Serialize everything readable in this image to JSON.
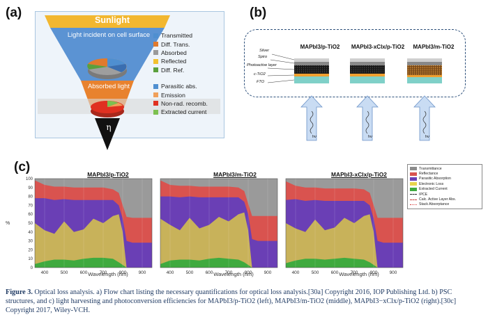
{
  "panel_a": {
    "label": "(a)",
    "title": "Sunlight",
    "incident_label": "Light incident on cell surface",
    "absorbed_label": "Absorbed light",
    "eta": "η",
    "legend1": [
      {
        "label": "Transmitted",
        "color": "#4f8fd0"
      },
      {
        "label": "Diff. Trans.",
        "color": "#e07a2e"
      },
      {
        "label": "Absorbed",
        "color": "#9a9a9a"
      },
      {
        "label": "Reflected",
        "color": "#f2c12e"
      },
      {
        "label": "Diff. Ref.",
        "color": "#5aa03c"
      }
    ],
    "legend2": [
      {
        "label": "Parasitic abs.",
        "color": "#4f8fd0"
      },
      {
        "label": "Emission",
        "color": "#f0a05a"
      },
      {
        "label": "Non-rad. recomb.",
        "color": "#e03020"
      },
      {
        "label": "Extracted current",
        "color": "#7cc050"
      }
    ]
  },
  "panel_b": {
    "label": "(b)",
    "structures": [
      "MAPbI3/p-TiO2",
      "MAPbI3-xClx/p-TiO2",
      "MAPbI3/m-TiO2"
    ],
    "layers": [
      "Silver",
      "Spiro",
      "Photoactive layer",
      "c-TiO2",
      "FTO"
    ],
    "light": "hν"
  },
  "panel_c": {
    "label": "(c)",
    "titles": [
      "MAPbI3/p-TiO2",
      "MAPbI3/m-TiO2",
      "MAPbI3-xClx/p-TiO2"
    ],
    "xlabel": "Wavelength (nm)",
    "ylabel": "%",
    "legend": [
      {
        "label": "Transmittance",
        "color": "#8c8c8c"
      },
      {
        "label": "Reflectance",
        "color": "#d9534f"
      },
      {
        "label": "Parasitic Absorption",
        "color": "#6a3fb5"
      },
      {
        "label": "Electronic Loss",
        "color": "#e8d44d"
      },
      {
        "label": "Extracted Current",
        "color": "#3faa3f"
      },
      {
        "label": "IPCE",
        "color": "#222222"
      },
      {
        "label": "Calc. Active Layer Abs.",
        "color": "#c83c3c"
      },
      {
        "label": "Stack Absorptance",
        "color": "#d84040"
      }
    ]
  },
  "chart_data": [
    {
      "type": "area",
      "title": "MAPbI3/p-TiO2",
      "xlabel": "Wavelength (nm)",
      "ylabel": "%",
      "xlim": [
        350,
        950
      ],
      "ylim": [
        0,
        100
      ],
      "x": [
        350,
        400,
        450,
        500,
        550,
        600,
        650,
        700,
        750,
        780,
        800,
        820,
        850,
        900,
        950
      ],
      "series": [
        {
          "name": "Extracted Current",
          "values": [
            4,
            7,
            9,
            9,
            8,
            10,
            11,
            11,
            10,
            6,
            3,
            0,
            0,
            0,
            0
          ]
        },
        {
          "name": "Electronic Loss",
          "values": [
            50,
            42,
            38,
            52,
            40,
            43,
            55,
            50,
            58,
            60,
            40,
            0,
            0,
            0,
            0
          ]
        },
        {
          "name": "Parasitic Absorption",
          "values": [
            78,
            78,
            76,
            77,
            76,
            76,
            76,
            76,
            76,
            70,
            55,
            30,
            28,
            28,
            28
          ]
        },
        {
          "name": "Reflectance",
          "values": [
            98,
            93,
            91,
            91,
            90,
            90,
            90,
            90,
            88,
            84,
            70,
            57,
            56,
            56,
            56
          ]
        },
        {
          "name": "Transmittance",
          "values": [
            100,
            100,
            100,
            100,
            100,
            100,
            100,
            100,
            100,
            100,
            100,
            100,
            100,
            100,
            100
          ]
        }
      ]
    },
    {
      "type": "area",
      "title": "MAPbI3/m-TiO2",
      "xlabel": "Wavelength (nm)",
      "ylabel": "%",
      "xlim": [
        350,
        950
      ],
      "ylim": [
        0,
        100
      ],
      "x": [
        350,
        400,
        450,
        500,
        550,
        600,
        650,
        700,
        750,
        780,
        800,
        820,
        850,
        900,
        950
      ],
      "series": [
        {
          "name": "Extracted Current",
          "values": [
            4,
            8,
            9,
            9,
            8,
            10,
            11,
            10,
            9,
            6,
            3,
            0,
            0,
            0,
            0
          ]
        },
        {
          "name": "Electronic Loss",
          "values": [
            55,
            48,
            42,
            56,
            44,
            48,
            57,
            52,
            60,
            62,
            42,
            0,
            0,
            0,
            0
          ]
        },
        {
          "name": "Parasitic Absorption",
          "values": [
            80,
            80,
            79,
            80,
            79,
            79,
            79,
            79,
            79,
            74,
            60,
            32,
            30,
            30,
            30
          ]
        },
        {
          "name": "Reflectance",
          "values": [
            98,
            93,
            92,
            92,
            91,
            91,
            91,
            91,
            90,
            86,
            72,
            58,
            58,
            58,
            58
          ]
        },
        {
          "name": "Transmittance",
          "values": [
            100,
            100,
            100,
            100,
            100,
            100,
            100,
            100,
            100,
            100,
            100,
            100,
            100,
            100,
            100
          ]
        }
      ]
    },
    {
      "type": "area",
      "title": "MAPbI3-xClx/p-TiO2",
      "xlabel": "Wavelength (nm)",
      "ylabel": "%",
      "xlim": [
        350,
        950
      ],
      "ylim": [
        0,
        100
      ],
      "x": [
        350,
        400,
        450,
        500,
        550,
        600,
        650,
        700,
        750,
        780,
        800,
        820,
        850,
        900,
        950
      ],
      "series": [
        {
          "name": "Extracted Current",
          "values": [
            5,
            8,
            10,
            10,
            9,
            10,
            11,
            10,
            9,
            6,
            3,
            0,
            0,
            0,
            0
          ]
        },
        {
          "name": "Electronic Loss",
          "values": [
            50,
            44,
            40,
            54,
            42,
            45,
            56,
            50,
            58,
            60,
            40,
            0,
            0,
            0,
            0
          ]
        },
        {
          "name": "Parasitic Absorption",
          "values": [
            76,
            77,
            75,
            76,
            75,
            75,
            75,
            75,
            75,
            70,
            55,
            30,
            28,
            28,
            28
          ]
        },
        {
          "name": "Reflectance",
          "values": [
            97,
            92,
            90,
            90,
            89,
            89,
            89,
            89,
            88,
            84,
            70,
            56,
            56,
            56,
            56
          ]
        },
        {
          "name": "Transmittance",
          "values": [
            100,
            100,
            100,
            100,
            100,
            100,
            100,
            100,
            100,
            100,
            100,
            100,
            100,
            100,
            100
          ]
        }
      ]
    }
  ],
  "caption": {
    "lead": "Figure 3.",
    "text": "Optical loss analysis. a) Flow chart listing the necessary quantifications for optical loss analysis.[30a] Copyright 2016, IOP Publishing Ltd. b) PSC structures, and c) light harvesting and photoconversion efficiencies for MAPbI3/p-TiO2 (left), MAPbI3/m-TiO2 (middle), MAPbI3−xClx/p-TiO2 (right).[30c] Copyright 2017, Wiley-VCH."
  }
}
